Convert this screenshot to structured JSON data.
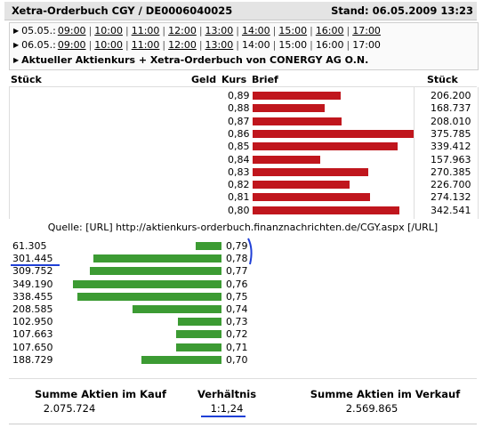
{
  "header": {
    "title": "Xetra-Orderbuch CGY / DE0006040025",
    "stand": "Stand: 06.05.2009 13:23"
  },
  "timeline": {
    "rows": [
      {
        "date": "05.05.:",
        "times": [
          {
            "t": "09:00",
            "link": true
          },
          {
            "t": "10:00",
            "link": true
          },
          {
            "t": "11:00",
            "link": true
          },
          {
            "t": "12:00",
            "link": true
          },
          {
            "t": "13:00",
            "link": true
          },
          {
            "t": "14:00",
            "link": true
          },
          {
            "t": "15:00",
            "link": true
          },
          {
            "t": "16:00",
            "link": true
          },
          {
            "t": "17:00",
            "link": true
          }
        ]
      },
      {
        "date": "06.05.:",
        "times": [
          {
            "t": "09:00",
            "link": true
          },
          {
            "t": "10:00",
            "link": true
          },
          {
            "t": "11:00",
            "link": true
          },
          {
            "t": "12:00",
            "link": true
          },
          {
            "t": "13:00",
            "link": true
          },
          {
            "t": "14:00",
            "link": false
          },
          {
            "t": "15:00",
            "link": false
          },
          {
            "t": "16:00",
            "link": false
          },
          {
            "t": "17:00",
            "link": false
          }
        ]
      }
    ],
    "current_link": "Aktueller Aktienkurs + Xetra-Orderbuch von CONERGY AG O.N."
  },
  "columns": {
    "stueck_left": "Stück",
    "geld": "Geld",
    "kurs": "Kurs",
    "brief": "Brief",
    "stueck_right": "Stück"
  },
  "asks": [
    {
      "price": "0,89",
      "qty": "206.200",
      "value": 206200
    },
    {
      "price": "0,88",
      "qty": "168.737",
      "value": 168737
    },
    {
      "price": "0,87",
      "qty": "208.010",
      "value": 208010
    },
    {
      "price": "0,86",
      "qty": "375.785",
      "value": 375785
    },
    {
      "price": "0,85",
      "qty": "339.412",
      "value": 339412
    },
    {
      "price": "0,84",
      "qty": "157.963",
      "value": 157963
    },
    {
      "price": "0,83",
      "qty": "270.385",
      "value": 270385
    },
    {
      "price": "0,82",
      "qty": "226.700",
      "value": 226700
    },
    {
      "price": "0,81",
      "qty": "274.132",
      "value": 274132
    },
    {
      "price": "0,80",
      "qty": "342.541",
      "value": 342541
    }
  ],
  "quelle": "Quelle: [URL] http://aktienkurs-orderbuch.finanznachrichten.de/CGY.aspx [/URL]",
  "bids": [
    {
      "price": "0,79",
      "qty": "61.305",
      "value": 61305
    },
    {
      "price": "0,78",
      "qty": "301.445",
      "value": 301445
    },
    {
      "price": "0,77",
      "qty": "309.752",
      "value": 309752
    },
    {
      "price": "0,76",
      "qty": "349.190",
      "value": 349190
    },
    {
      "price": "0,75",
      "qty": "338.455",
      "value": 338455
    },
    {
      "price": "0,74",
      "qty": "208.585",
      "value": 208585
    },
    {
      "price": "0,73",
      "qty": "102.950",
      "value": 102950
    },
    {
      "price": "0,72",
      "qty": "107.663",
      "value": 107663
    },
    {
      "price": "0,71",
      "qty": "107.650",
      "value": 107650
    },
    {
      "price": "0,70",
      "qty": "188.729",
      "value": 188729
    }
  ],
  "summary": {
    "kauf_label": "Summe Aktien im Kauf",
    "kauf_value": "2.075.724",
    "verhaeltnis_label": "Verhältnis",
    "verhaeltnis_value": "1:1,24",
    "verkauf_label": "Summe Aktien im Verkauf",
    "verkauf_value": "2.569.865"
  },
  "colors": {
    "ask_bar": "#c0161d",
    "bid_bar": "#3c9b33",
    "annotation": "#1f3fd6"
  }
}
